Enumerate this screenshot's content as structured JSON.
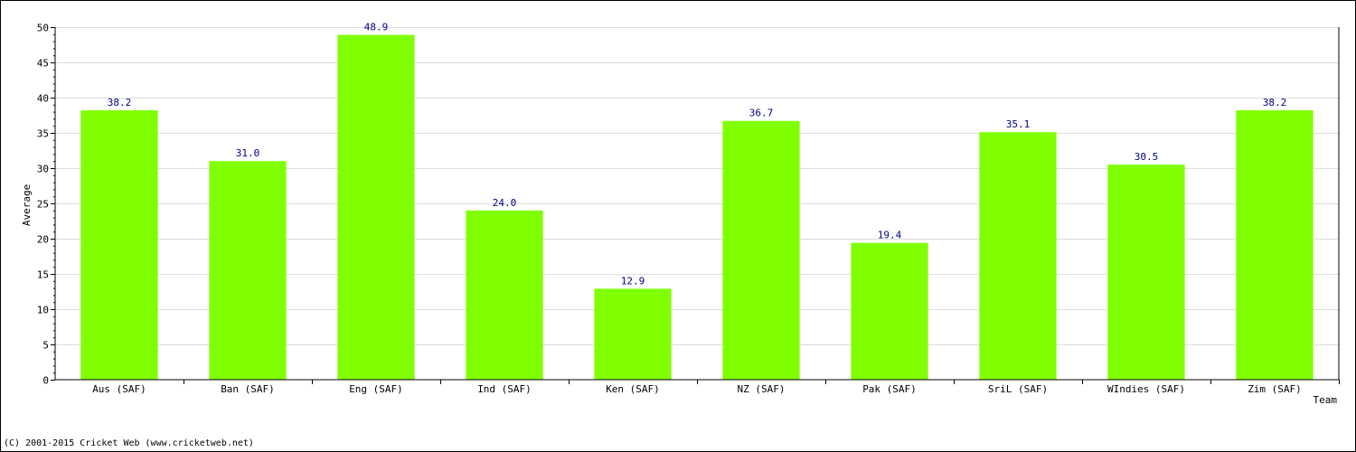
{
  "chart_data": {
    "type": "bar",
    "categories": [
      "Aus (SAF)",
      "Ban (SAF)",
      "Eng (SAF)",
      "Ind (SAF)",
      "Ken (SAF)",
      "NZ (SAF)",
      "Pak (SAF)",
      "SriL (SAF)",
      "WIndies (SAF)",
      "Zim (SAF)"
    ],
    "values": [
      38.2,
      31.0,
      48.9,
      24.0,
      12.9,
      36.7,
      19.4,
      35.1,
      30.5,
      38.2
    ],
    "value_labels": [
      "38.2",
      "31.0",
      "48.9",
      "24.0",
      "12.9",
      "36.7",
      "19.4",
      "35.1",
      "30.5",
      "38.2"
    ],
    "xlabel": "Team",
    "ylabel": "Average",
    "ylim": [
      0,
      50
    ],
    "yticks": [
      0,
      5,
      10,
      15,
      20,
      25,
      30,
      35,
      40,
      45,
      50
    ],
    "grid": true,
    "colors": {
      "bar": "#80ff00",
      "grid": "#dddddd",
      "axis": "#000000",
      "data_label": "#000080"
    }
  },
  "footer": {
    "copyright": "(C) 2001-2015 Cricket Web (www.cricketweb.net)"
  }
}
